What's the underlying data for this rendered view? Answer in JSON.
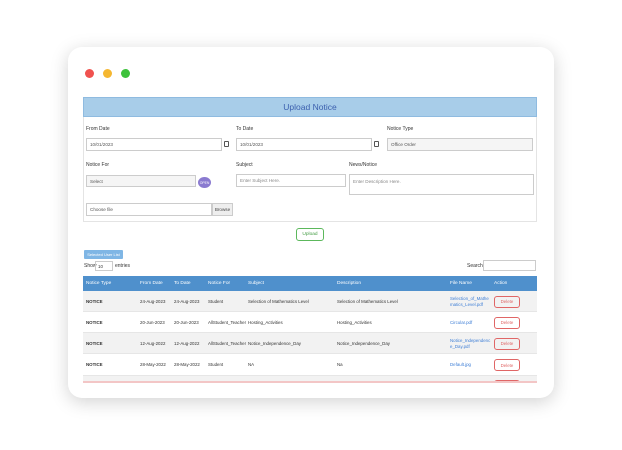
{
  "header": {
    "title": "Upload Notice"
  },
  "form": {
    "from_date": {
      "label": "From Date",
      "value": "10/01/2023"
    },
    "to_date": {
      "label": "To Date",
      "value": "10/01/2023"
    },
    "notice_type": {
      "label": "Notice Type",
      "value": "Office Order"
    },
    "notice_for": {
      "label": "Notice For",
      "value": "Select",
      "button": "OPEN"
    },
    "subject": {
      "label": "Subject",
      "placeholder": "Enter Subject Here."
    },
    "news_notice": {
      "label": "News/Notice",
      "placeholder": "Enter Description Here."
    },
    "file": {
      "placeholder": "Choose file",
      "button": "Browse"
    },
    "upload_button": "Upload"
  },
  "table_section": {
    "badge": "Selected User List",
    "show": "Show",
    "entries_count": "10",
    "entries": "entries",
    "search": "Search:"
  },
  "table": {
    "columns": [
      "Notice Type",
      "From Date",
      "To Date",
      "Notice For",
      "Subject",
      "Description",
      "File Name",
      "Action"
    ],
    "rows": [
      [
        "NOTICE",
        "24-Aug-2023",
        "24-Aug-2023",
        "Student",
        "Selection of Mathematics Level",
        "Selection of Mathematics Level",
        "Selection_of_Mathematics_Level.pdf",
        "Delete"
      ],
      [
        "NOTICE",
        "20-Jun-2023",
        "20-Jun-2023",
        "AllStudent_Teacher",
        "Hosting_Activities",
        "Hosting_Activities",
        "Circular.pdf",
        "Delete"
      ],
      [
        "NOTICE",
        "12-Aug-2022",
        "12-Aug-2022",
        "AllStudent_Teacher",
        "Notice_Independence_Day",
        "Notice_Independence_Day",
        "Notice_Independence_Day.pdf",
        "Delete"
      ],
      [
        "NOTICE",
        "28-May-2022",
        "28-May-2022",
        "Student",
        "NA",
        "Na",
        "Default.jpg",
        "Delete"
      ]
    ]
  }
}
